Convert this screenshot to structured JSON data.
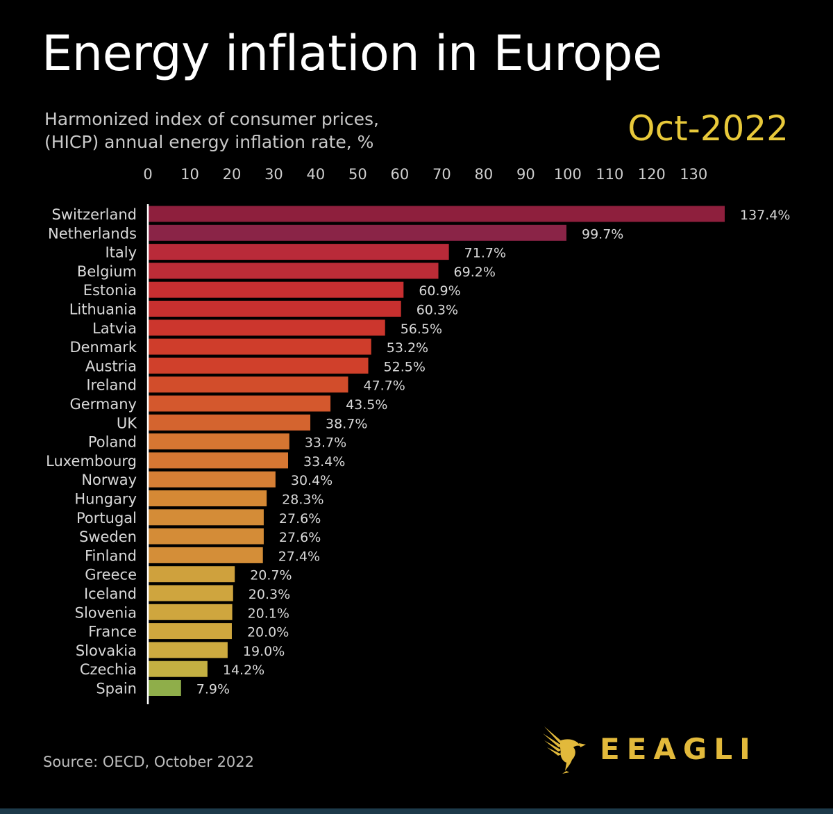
{
  "header": {
    "title": "Energy inflation in Europe",
    "subtitle_line1": "Harmonized index of consumer prices,",
    "subtitle_line2": "(HICP) annual energy inflation rate, %",
    "date": "Oct-2022"
  },
  "footer": {
    "source": "Source: OECD, October 2022",
    "brand": "EEAGLI"
  },
  "colors": {
    "background": "#000000",
    "accent": "#e8c93a",
    "bar_top": "#8e1f3d",
    "bar_mid": "#d2452b",
    "bar_orange": "#dc8a35",
    "bar_yellow": "#ccb045",
    "bar_green": "#8fae4a"
  },
  "chart_data": {
    "type": "bar",
    "orientation": "horizontal",
    "title": "Energy inflation in Europe",
    "xlabel": "Harmonized index of consumer prices, (HICP) annual energy inflation rate, %",
    "ylabel": "",
    "xlim": [
      0,
      137.4
    ],
    "x_ticks": [
      0,
      10,
      20,
      30,
      40,
      50,
      60,
      70,
      80,
      90,
      100,
      110,
      120,
      130
    ],
    "axis_position": "top",
    "grid": false,
    "categories": [
      "Switzerland",
      "Netherlands",
      "Italy",
      "Belgium",
      "Estonia",
      "Lithuania",
      "Latvia",
      "Denmark",
      "Austria",
      "Ireland",
      "Germany",
      "UK",
      "Poland",
      "Luxembourg",
      "Norway",
      "Hungary",
      "Portugal",
      "Sweden",
      "Finland",
      "Greece",
      "Iceland",
      "Slovenia",
      "France",
      "Slovakia",
      "Czechia",
      "Spain"
    ],
    "values": [
      137.4,
      99.7,
      71.7,
      69.2,
      60.9,
      60.3,
      56.5,
      53.2,
      52.5,
      47.7,
      43.5,
      38.7,
      33.7,
      33.4,
      30.4,
      28.3,
      27.6,
      27.6,
      27.4,
      20.7,
      20.3,
      20.1,
      20.0,
      19.0,
      14.2,
      7.9
    ],
    "value_labels": [
      "137.4%",
      "99.7%",
      "71.7%",
      "69.2%",
      "60.9%",
      "60.3%",
      "56.5%",
      "53.2%",
      "52.5%",
      "47.7%",
      "43.5%",
      "38.7%",
      "33.7%",
      "33.4%",
      "30.4%",
      "28.3%",
      "27.6%",
      "27.6%",
      "27.4%",
      "20.7%",
      "20.3%",
      "20.1%",
      "20.0%",
      "19.0%",
      "14.2%",
      "7.9%"
    ],
    "bar_colors": [
      "#8e1f3d",
      "#8a2447",
      "#b92a39",
      "#bc2c37",
      "#c72f31",
      "#c7302f",
      "#cc362d",
      "#cf3d2b",
      "#d0402b",
      "#d24d2b",
      "#d4582d",
      "#d4642f",
      "#d67632",
      "#d67733",
      "#d67f35",
      "#d58935",
      "#d48c37",
      "#d48c37",
      "#d48e38",
      "#cfa13d",
      "#cfa53e",
      "#cfa63e",
      "#cfa73e",
      "#cdaa40",
      "#c4b042",
      "#8fae4a"
    ]
  }
}
